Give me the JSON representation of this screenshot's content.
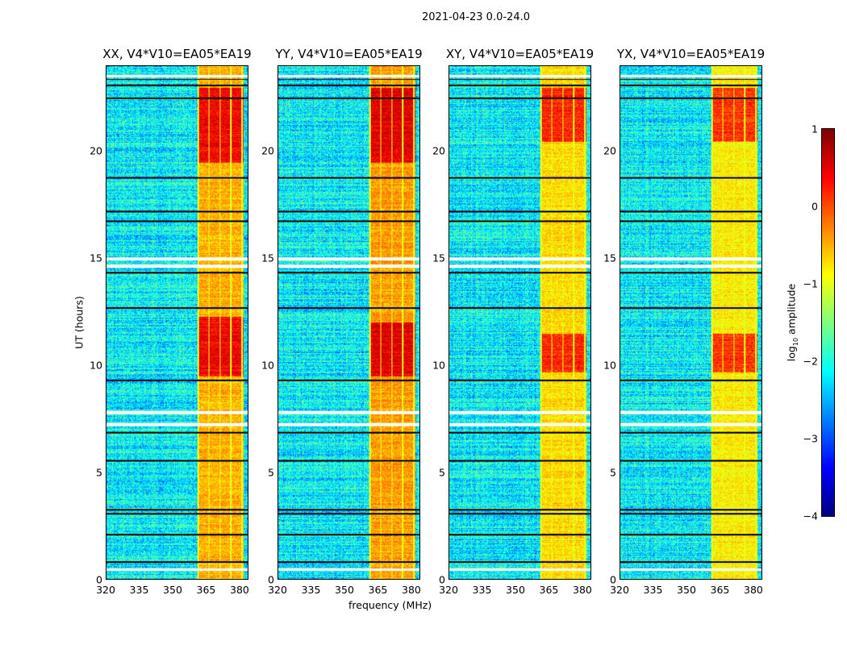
{
  "figure": {
    "suptitle": "2021-04-23 0.0-24.0"
  },
  "chart_data": {
    "type": "heatmap",
    "title": "2021-04-23 0.0-24.0",
    "xlabel": "frequency (MHz)",
    "ylabel": "UT (hours)",
    "xlim": [
      320,
      384
    ],
    "ylim": [
      0,
      24
    ],
    "xticks": [
      "320",
      "335",
      "350",
      "365",
      "380"
    ],
    "yticks": [
      "0",
      "5",
      "10",
      "15",
      "20"
    ],
    "panels": [
      {
        "title": "XX, V4*V10=EA05*EA19",
        "strong_hours": [
          [
            9.5,
            12.3
          ],
          [
            19.5,
            23.0
          ]
        ],
        "band_level": -0.5
      },
      {
        "title": "YY, V4*V10=EA05*EA19",
        "strong_hours": [
          [
            9.5,
            12.0
          ],
          [
            19.5,
            23.0
          ]
        ],
        "band_level": -0.4
      },
      {
        "title": "XY, V4*V10=EA05*EA19",
        "strong_hours": [
          [
            9.7,
            11.5
          ],
          [
            20.5,
            23.0
          ]
        ],
        "band_level": -0.7
      },
      {
        "title": "YX, V4*V10=EA05*EA19",
        "strong_hours": [
          [
            9.7,
            11.5
          ],
          [
            20.5,
            23.0
          ]
        ],
        "band_level": -0.8
      }
    ],
    "rfi_band_mhz": [
      361,
      382
    ],
    "background_level": -2.4,
    "flagged_white_hours": [
      0.45,
      7.25,
      7.8,
      14.65,
      15.0,
      23.55
    ],
    "flagged_black_hours": [
      0.8,
      2.1,
      3.05,
      3.25,
      5.55,
      6.85,
      9.3,
      12.7,
      14.35,
      16.75,
      17.2,
      18.8,
      22.5,
      23.1,
      23.4
    ],
    "colorbar": {
      "label_prefix": "log",
      "label_sub": "10",
      "label_suffix": " amplitude",
      "range": [
        -4,
        1
      ],
      "ticks": [
        "−4",
        "−3",
        "−2",
        "−1",
        "0",
        "1"
      ],
      "colormap": "jet"
    }
  }
}
